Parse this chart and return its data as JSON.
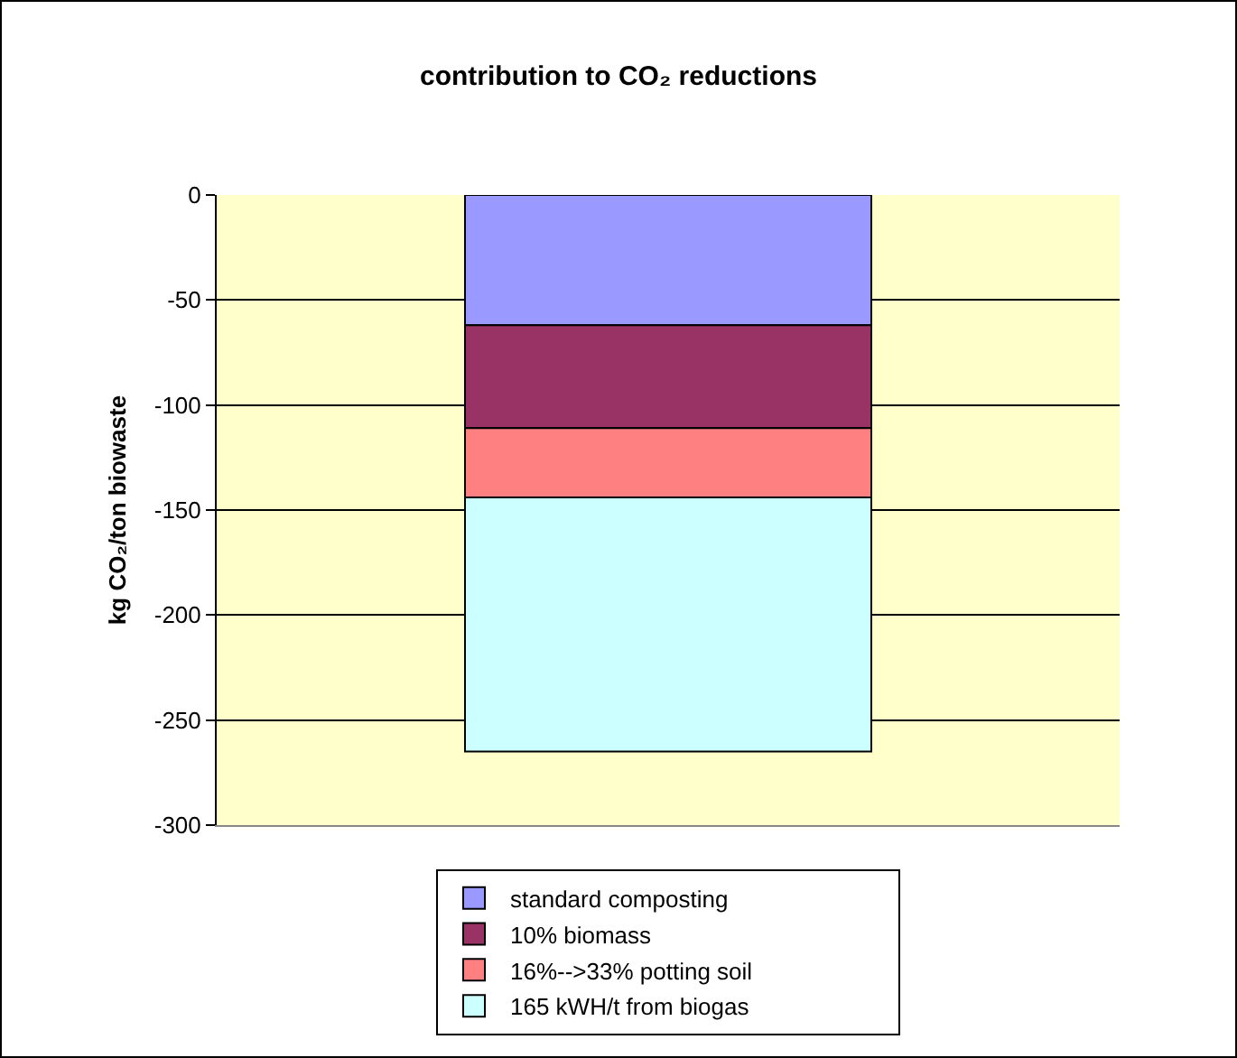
{
  "chart_data": {
    "type": "bar",
    "title": "contribution to CO₂ reductions",
    "ylabel": "kg CO₂/ton biowaste",
    "categories": [
      null
    ],
    "stacked": true,
    "series": [
      {
        "name": "standard composting",
        "color": "#9999ff",
        "values": [
          -62
        ]
      },
      {
        "name": "10% biomass",
        "color": "#993366",
        "values": [
          -49
        ]
      },
      {
        "name": "16%-->33% potting soil",
        "color": "#ff8080",
        "values": [
          -33
        ]
      },
      {
        "name": "165 kWH/t from biogas",
        "color": "#ccffff",
        "values": [
          -121
        ]
      }
    ],
    "ylim": [
      -300,
      0
    ],
    "yticks": [
      -300,
      -250,
      -200,
      -150,
      -100,
      -50,
      0
    ],
    "grid": "y",
    "legend": "bottom"
  }
}
